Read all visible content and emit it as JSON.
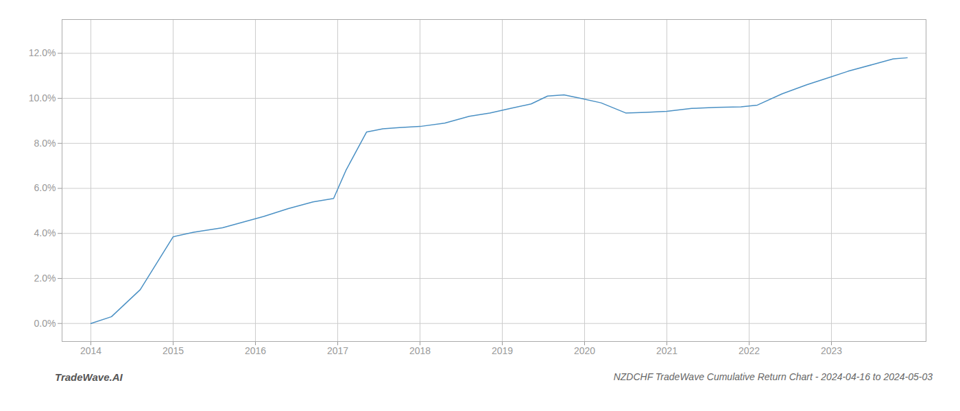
{
  "chart_data": {
    "type": "line",
    "title": "NZDCHF TradeWave Cumulative Return Chart - 2024-04-16 to 2024-05-03",
    "annotations": [
      {
        "text": "TradeWave.AI"
      }
    ],
    "x": [
      2014.0,
      2014.25,
      2014.6,
      2015.0,
      2015.25,
      2015.6,
      2015.85,
      2016.1,
      2016.4,
      2016.7,
      2016.95,
      2017.1,
      2017.35,
      2017.55,
      2017.75,
      2018.0,
      2018.3,
      2018.6,
      2018.85,
      2019.1,
      2019.35,
      2019.55,
      2019.75,
      2019.95,
      2020.2,
      2020.5,
      2020.75,
      2021.0,
      2021.3,
      2021.6,
      2021.9,
      2022.1,
      2022.4,
      2022.7,
      2022.95,
      2023.2,
      2023.5,
      2023.75,
      2023.92
    ],
    "values": [
      0.0,
      0.3,
      1.5,
      3.85,
      4.05,
      4.25,
      4.5,
      4.75,
      5.1,
      5.4,
      5.55,
      6.8,
      8.5,
      8.65,
      8.7,
      8.75,
      8.9,
      9.2,
      9.35,
      9.55,
      9.75,
      10.1,
      10.15,
      10.0,
      9.8,
      9.35,
      9.38,
      9.42,
      9.55,
      9.6,
      9.62,
      9.7,
      10.2,
      10.6,
      10.9,
      11.2,
      11.5,
      11.75,
      11.8
    ],
    "color": "#4a90c4",
    "xlim": [
      2013.65,
      2024.15
    ],
    "xticks": [
      2014,
      2015,
      2016,
      2017,
      2018,
      2019,
      2020,
      2021,
      2022,
      2023
    ],
    "ylim": [
      -0.8,
      13.5
    ],
    "yticks": [
      {
        "value": 0.0,
        "label": "0.0%"
      },
      {
        "value": 2.0,
        "label": "2.0%"
      },
      {
        "value": 4.0,
        "label": "4.0%"
      },
      {
        "value": 6.0,
        "label": "6.0%"
      },
      {
        "value": 8.0,
        "label": "8.0%"
      },
      {
        "value": 10.0,
        "label": "10.0%"
      },
      {
        "value": 12.0,
        "label": "12.0%"
      }
    ],
    "grid": true
  }
}
